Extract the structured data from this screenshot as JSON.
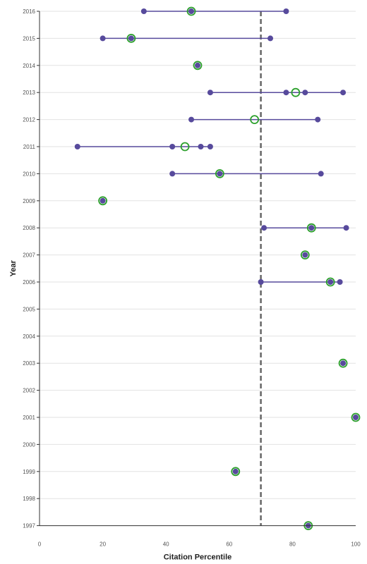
{
  "chart_data": {
    "type": "scatter",
    "xlabel": "Citation Percentile",
    "ylabel": "Year",
    "xlim": [
      0,
      100
    ],
    "x_ticks": [
      0,
      20,
      40,
      60,
      80,
      100
    ],
    "x_tick_labels": [
      "0",
      "20",
      "40",
      "60",
      "80",
      "100"
    ],
    "y_categories": [
      "2016",
      "2015",
      "2014",
      "2013",
      "2012",
      "2011",
      "2010",
      "2009",
      "2008",
      "2007",
      "2006",
      "2005",
      "2004",
      "2003",
      "2002",
      "2001",
      "2000",
      "1999",
      "1998",
      "1997"
    ],
    "grid": "horizontal",
    "reference_line": {
      "x": 70,
      "style": "dashed"
    },
    "rows": [
      {
        "year": "2016",
        "points": [
          33,
          48,
          78
        ],
        "mean": 48
      },
      {
        "year": "2015",
        "points": [
          20,
          29,
          73
        ],
        "mean": 29
      },
      {
        "year": "2014",
        "points": [
          50
        ],
        "mean": 50
      },
      {
        "year": "2013",
        "points": [
          54,
          78,
          84,
          96
        ],
        "mean": 81
      },
      {
        "year": "2012",
        "points": [
          48,
          88
        ],
        "mean": 68
      },
      {
        "year": "2011",
        "points": [
          12,
          42,
          51,
          54
        ],
        "mean": 46
      },
      {
        "year": "2010",
        "points": [
          42,
          57,
          89
        ],
        "mean": 57
      },
      {
        "year": "2009",
        "points": [
          20
        ],
        "mean": 20
      },
      {
        "year": "2008",
        "points": [
          71,
          86,
          97
        ],
        "mean": 86
      },
      {
        "year": "2007",
        "points": [
          84
        ],
        "mean": 84
      },
      {
        "year": "2006",
        "points": [
          70,
          92,
          95
        ],
        "mean": 92
      },
      {
        "year": "2005",
        "points": [],
        "mean": null
      },
      {
        "year": "2004",
        "points": [],
        "mean": null
      },
      {
        "year": "2003",
        "points": [
          96
        ],
        "mean": 96
      },
      {
        "year": "2002",
        "points": [],
        "mean": null
      },
      {
        "year": "2001",
        "points": [
          100
        ],
        "mean": 100
      },
      {
        "year": "2000",
        "points": [],
        "mean": null
      },
      {
        "year": "1999",
        "points": [
          62
        ],
        "mean": 62
      },
      {
        "year": "1998",
        "points": [],
        "mean": null
      },
      {
        "year": "1997",
        "points": [
          85
        ],
        "mean": 85
      }
    ],
    "colors": {
      "point": "#574a9c",
      "range_line": "#574a9c",
      "mean_ring": "#2ca02c",
      "reference_line": "#666666",
      "grid": "#e2e2e2"
    }
  }
}
